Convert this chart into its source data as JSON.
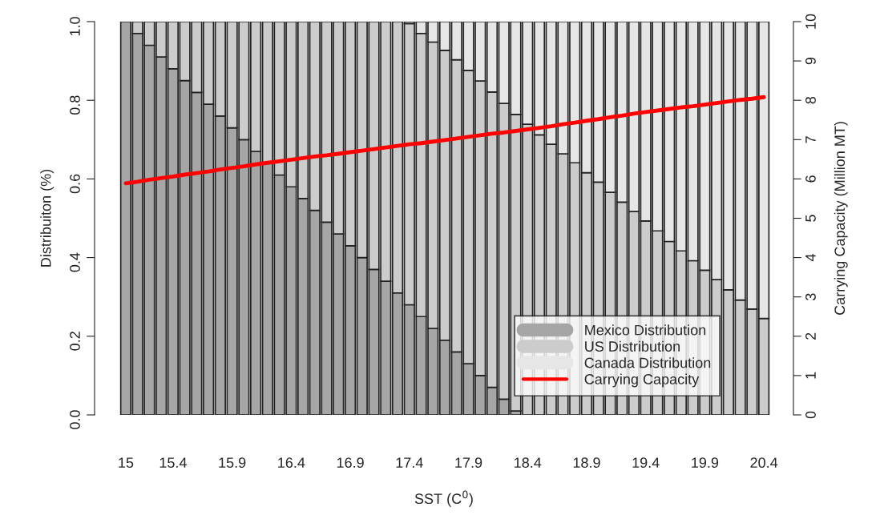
{
  "chart_data": {
    "type": "bar",
    "stacked": true,
    "xlabel": "SST (C$^{0}$)",
    "ylabel": "Distribuiton (%)",
    "y2label": "Carrying Capacity (Million MT)",
    "categories": [
      "15",
      null,
      null,
      null,
      "15.4",
      null,
      null,
      null,
      null,
      "15.9",
      null,
      null,
      null,
      null,
      "16.4",
      null,
      null,
      null,
      null,
      "16.9",
      null,
      null,
      null,
      null,
      "17.4",
      null,
      null,
      null,
      null,
      "17.9",
      null,
      null,
      null,
      null,
      "18.4",
      null,
      null,
      null,
      null,
      "18.9",
      null,
      null,
      null,
      null,
      "19.4",
      null,
      null,
      null,
      null,
      "19.9",
      null,
      null,
      null,
      null,
      "20.4"
    ],
    "series": [
      {
        "name": "Mexico Distribution",
        "color": "#a6a6a6",
        "values": [
          1.0,
          0.97,
          0.94,
          0.91,
          0.88,
          0.85,
          0.82,
          0.79,
          0.76,
          0.73,
          0.7,
          0.67,
          0.64,
          0.61,
          0.58,
          0.55,
          0.52,
          0.49,
          0.46,
          0.43,
          0.4,
          0.37,
          0.34,
          0.31,
          0.28,
          0.25,
          0.22,
          0.19,
          0.16,
          0.13,
          0.1,
          0.07,
          0.04,
          0.01,
          0,
          0,
          0,
          0,
          0,
          0,
          0,
          0,
          0,
          0,
          0,
          0,
          0,
          0,
          0,
          0,
          0,
          0,
          0,
          0,
          0
        ]
      },
      {
        "name": "US Distribution",
        "color": "#cccccc",
        "values": [
          0,
          0.03,
          0.06,
          0.09,
          0.12,
          0.15,
          0.18,
          0.21,
          0.24,
          0.27,
          0.3,
          0.33,
          0.36,
          0.39,
          0.42,
          0.45,
          0.48,
          0.51,
          0.54,
          0.57,
          0.6,
          0.63,
          0.66,
          0.69,
          0.715,
          0.72,
          0.728,
          0.737,
          0.743,
          0.746,
          0.749,
          0.751,
          0.752,
          0.754,
          0.739,
          0.712,
          0.688,
          0.664,
          0.641,
          0.616,
          0.592,
          0.566,
          0.541,
          0.517,
          0.493,
          0.468,
          0.441,
          0.417,
          0.392,
          0.368,
          0.344,
          0.318,
          0.292,
          0.269,
          0.245
        ]
      },
      {
        "name": "Canada Distribution",
        "color": "#e6e6e6",
        "values": [
          0,
          0,
          0,
          0,
          0,
          0,
          0,
          0,
          0,
          0,
          0,
          0,
          0,
          0,
          0,
          0,
          0,
          0,
          0,
          0,
          0,
          0,
          0,
          0,
          0.005,
          0.03,
          0.052,
          0.073,
          0.097,
          0.124,
          0.151,
          0.179,
          0.208,
          0.236,
          0.261,
          0.288,
          0.312,
          0.336,
          0.359,
          0.384,
          0.408,
          0.434,
          0.459,
          0.483,
          0.507,
          0.532,
          0.559,
          0.583,
          0.608,
          0.632,
          0.656,
          0.682,
          0.708,
          0.731,
          0.755
        ]
      },
      {
        "name": "Carrying Capacity",
        "type": "line",
        "axis": "y2",
        "color": "#ff0000",
        "values": [
          5.89,
          5.93,
          5.98,
          6.02,
          6.06,
          6.11,
          6.15,
          6.19,
          6.24,
          6.28,
          6.32,
          6.37,
          6.41,
          6.45,
          6.49,
          6.53,
          6.57,
          6.6,
          6.64,
          6.68,
          6.72,
          6.76,
          6.8,
          6.84,
          6.88,
          6.91,
          6.95,
          6.99,
          7.03,
          7.07,
          7.11,
          7.15,
          7.18,
          7.22,
          7.26,
          7.3,
          7.34,
          7.39,
          7.43,
          7.48,
          7.52,
          7.57,
          7.61,
          7.66,
          7.7,
          7.74,
          7.78,
          7.82,
          7.85,
          7.89,
          7.93,
          7.97,
          8.01,
          8.04,
          8.08
        ]
      }
    ],
    "ylim": [
      0,
      1
    ],
    "yticks": [
      {
        "value": 0,
        "label": "0.0"
      },
      {
        "value": 0.2,
        "label": "0.2"
      },
      {
        "value": 0.4,
        "label": "0.4"
      },
      {
        "value": 0.6,
        "label": "0.6"
      },
      {
        "value": 0.8,
        "label": "0.8"
      },
      {
        "value": 1,
        "label": "1.0"
      }
    ],
    "y2lim": [
      0,
      10
    ],
    "y2ticks": [
      0,
      1,
      2,
      3,
      4,
      5,
      6,
      7,
      8,
      9,
      10
    ],
    "legend": "bottom right",
    "grid": false
  }
}
